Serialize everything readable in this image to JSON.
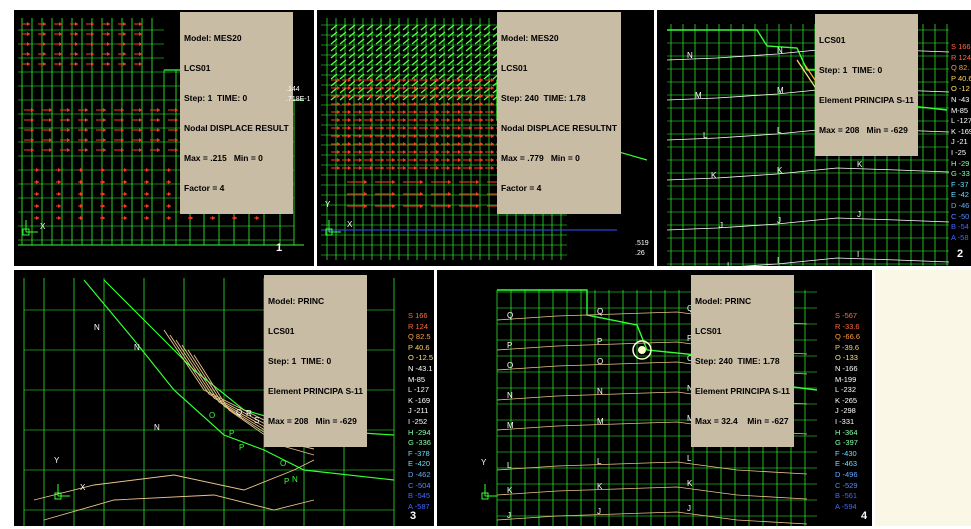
{
  "panels": {
    "p1": {
      "info": [
        "Model: MES20",
        "LCS01",
        "Step: 1  TIME: 0",
        "Nodal DISPLACE RESULT",
        "Max = .215   Min = 0",
        "Factor = 4"
      ],
      "scale": [
        ".144",
        ".718E-1"
      ],
      "axis_y": "Y",
      "axis_x": "X",
      "number": "1"
    },
    "p2": {
      "info": [
        "Model: MES20",
        "LCS01",
        "Step: 240  TIME: 1.78",
        "Nodal DISPLACE RESULTNT",
        "Max = .779   Min = 0",
        "Factor = 4"
      ],
      "scale": [
        ".519",
        ".26"
      ],
      "axis_y": "Y",
      "axis_x": "X"
    },
    "p3": {
      "info": [
        "LCS01",
        "Step: 1  TIME: 0",
        "Element PRINCIPA S-11",
        "Max = 208   Min = -629"
      ],
      "legend": [
        "S 166",
        "R 124",
        "Q 82.",
        "P 40.6",
        "O -12",
        "N -43",
        "M-85",
        "L -127",
        "K -169",
        "J -21",
        "I -25",
        "H -29",
        "G -33",
        "F -37",
        "E -42",
        "D -46",
        "C -50",
        "B -54",
        "A -58"
      ],
      "number": "2"
    },
    "p4": {
      "info": [
        "Model: PRINC",
        "LCS01",
        "Step: 1  TIME: 0",
        "Element PRINCIPA S-11",
        "Max = 208   Min = -629"
      ],
      "legend": [
        "S 166",
        "R 124",
        "Q 82.5",
        "P 40.6",
        "O -12.5",
        "N -43.1",
        "M-85",
        "L -127",
        "K -169",
        "J -211",
        "I -252",
        "H -294",
        "G -336",
        "F -378",
        "E -420",
        "D -462",
        "C -504",
        "B -545",
        "A -587"
      ],
      "axis_y": "Y",
      "axis_x": "X",
      "number": "3"
    },
    "p5": {
      "info": [
        "Model: PRINC",
        "LCS01",
        "Step: 240  TIME: 1.78",
        "Element PRINCIPA S-11",
        "Max = 32.4    Min = -627"
      ],
      "legend": [
        "S -567",
        "R -33.6",
        "Q -66.6",
        "P -39.6",
        "O -133",
        "N -166",
        "M-199",
        "L -232",
        "K -265",
        "J -298",
        "I -331",
        "H -364",
        "G -397",
        "F -430",
        "E -463",
        "D -496",
        "C -529",
        "B -561",
        "A -594"
      ],
      "axis_y": "Y",
      "number": "4"
    }
  },
  "colors": {
    "mesh": "#33ff33",
    "arrows": "#ff3b1f",
    "contour": "#e8c48a",
    "info_bg": "#c9bca4"
  },
  "legend_colors": [
    "#ff6a3d",
    "#ff6a3d",
    "#ffa040",
    "#ffd060",
    "#ffe070",
    "#ffffff",
    "#ffffff",
    "#ffffff",
    "#ffffff",
    "#ffffff",
    "#ffffff",
    "#88ffaa",
    "#88ffaa",
    "#66ddff",
    "#66ddff",
    "#66aaff",
    "#5588ff",
    "#4466ff",
    "#4466ff"
  ]
}
